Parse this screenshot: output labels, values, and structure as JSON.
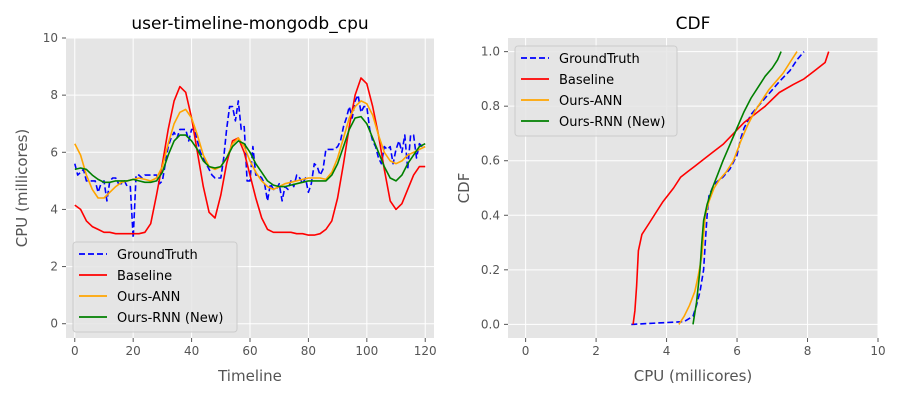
{
  "chart_data": [
    {
      "type": "line",
      "title": "user-timeline-mongodb_cpu",
      "xlabel": "Timeline",
      "ylabel": "CPU (millicores)",
      "xlim": [
        -3,
        123
      ],
      "ylim": [
        -0.5,
        10
      ],
      "xticks": [
        "0",
        "20",
        "40",
        "60",
        "80",
        "100",
        "120"
      ],
      "yticks": [
        "0",
        "2",
        "4",
        "6",
        "8",
        "10"
      ],
      "grid": true,
      "legend_position": "lower-left",
      "series": [
        {
          "name": "GroundTruth",
          "color": "#0000ff",
          "dash": "dashed",
          "x": [
            0,
            1,
            2,
            3,
            4,
            5,
            6,
            7,
            8,
            9,
            10,
            11,
            12,
            13,
            14,
            15,
            16,
            17,
            18,
            19,
            20,
            21,
            22,
            23,
            24,
            25,
            26,
            27,
            28,
            29,
            30,
            31,
            32,
            33,
            34,
            35,
            36,
            37,
            38,
            39,
            40,
            41,
            42,
            43,
            44,
            45,
            46,
            47,
            48,
            49,
            50,
            51,
            52,
            53,
            54,
            55,
            56,
            57,
            58,
            59,
            60,
            61,
            62,
            63,
            64,
            65,
            66,
            67,
            68,
            69,
            70,
            71,
            72,
            73,
            74,
            75,
            76,
            77,
            78,
            79,
            80,
            81,
            82,
            83,
            84,
            85,
            86,
            87,
            88,
            89,
            90,
            91,
            92,
            93,
            94,
            95,
            96,
            97,
            98,
            99,
            100,
            101,
            102,
            103,
            104,
            105,
            106,
            107,
            108,
            109,
            110,
            111,
            112,
            113,
            114,
            115,
            116,
            117,
            118,
            119
          ],
          "y": [
            5.6,
            5.2,
            5.3,
            5.4,
            5.0,
            5.0,
            5.0,
            5.0,
            4.6,
            4.9,
            5.0,
            4.3,
            5.0,
            5.1,
            5.1,
            4.9,
            4.9,
            5.0,
            4.8,
            4.8,
            3.0,
            5.2,
            5.2,
            5.1,
            5.2,
            5.2,
            5.2,
            5.2,
            5.2,
            4.9,
            5.0,
            5.6,
            6.2,
            6.5,
            6.7,
            6.5,
            6.8,
            6.8,
            6.8,
            6.4,
            6.8,
            6.8,
            6.4,
            6.0,
            5.8,
            5.6,
            5.4,
            5.2,
            5.1,
            5.1,
            5.1,
            5.8,
            6.8,
            7.6,
            7.6,
            7.1,
            7.8,
            6.8,
            6.9,
            5.0,
            5.0,
            6.2,
            5.2,
            5.2,
            5.1,
            4.9,
            4.3,
            4.9,
            4.7,
            4.7,
            4.9,
            4.3,
            4.8,
            4.7,
            5.0,
            4.8,
            5.2,
            5.1,
            4.9,
            5.1,
            4.6,
            4.9,
            5.6,
            5.5,
            5.2,
            5.4,
            6.1,
            6.1,
            6.1,
            6.1,
            6.2,
            6.4,
            6.9,
            7.2,
            7.6,
            7.2,
            7.8,
            8.0,
            7.4,
            7.6,
            7.6,
            6.8,
            6.4,
            6.2,
            5.8,
            5.6,
            6.2,
            6.1,
            6.2,
            5.6,
            6.1,
            6.4,
            6.0,
            6.6,
            5.4,
            6.6,
            6.6,
            5.8,
            6.3,
            6.2
          ]
        },
        {
          "name": "Baseline",
          "color": "#ff0000",
          "dash": "solid",
          "x": [
            0,
            2,
            4,
            6,
            8,
            10,
            12,
            14,
            16,
            18,
            20,
            22,
            24,
            26,
            28,
            30,
            32,
            34,
            36,
            38,
            40,
            42,
            44,
            46,
            48,
            50,
            52,
            54,
            56,
            58,
            60,
            62,
            64,
            66,
            68,
            70,
            72,
            74,
            76,
            78,
            80,
            82,
            84,
            86,
            88,
            90,
            92,
            94,
            96,
            98,
            100,
            102,
            104,
            106,
            108,
            110,
            112,
            114,
            116,
            118,
            120
          ],
          "y": [
            4.15,
            4.0,
            3.6,
            3.4,
            3.3,
            3.2,
            3.2,
            3.15,
            3.15,
            3.15,
            3.15,
            3.15,
            3.2,
            3.5,
            4.5,
            5.6,
            6.8,
            7.8,
            8.3,
            8.1,
            7.2,
            6.0,
            4.8,
            3.9,
            3.7,
            4.5,
            5.6,
            6.4,
            6.5,
            6.0,
            5.2,
            4.4,
            3.7,
            3.3,
            3.2,
            3.2,
            3.2,
            3.2,
            3.15,
            3.15,
            3.1,
            3.1,
            3.15,
            3.3,
            3.6,
            4.4,
            5.6,
            6.9,
            8.0,
            8.6,
            8.4,
            7.6,
            6.6,
            5.4,
            4.3,
            4.0,
            4.2,
            4.7,
            5.2,
            5.5,
            5.5
          ]
        },
        {
          "name": "Ours-ANN",
          "color": "#ffa500",
          "dash": "solid",
          "x": [
            0,
            2,
            4,
            6,
            8,
            10,
            12,
            14,
            16,
            18,
            20,
            22,
            24,
            26,
            28,
            30,
            32,
            34,
            36,
            38,
            40,
            42,
            44,
            46,
            48,
            50,
            52,
            54,
            56,
            58,
            60,
            62,
            64,
            66,
            68,
            70,
            72,
            74,
            76,
            78,
            80,
            82,
            84,
            86,
            88,
            90,
            92,
            94,
            96,
            98,
            100,
            102,
            104,
            106,
            108,
            110,
            112,
            114,
            116,
            118,
            120
          ],
          "y": [
            6.3,
            5.9,
            5.2,
            4.7,
            4.4,
            4.4,
            4.6,
            4.8,
            4.95,
            5.0,
            5.05,
            5.1,
            5.05,
            5.0,
            5.1,
            5.5,
            6.3,
            7.0,
            7.4,
            7.5,
            7.2,
            6.6,
            5.9,
            5.5,
            5.4,
            5.5,
            5.8,
            6.3,
            6.5,
            6.2,
            5.7,
            5.3,
            5.0,
            4.8,
            4.7,
            4.8,
            4.9,
            4.95,
            5.0,
            5.05,
            5.1,
            5.1,
            5.1,
            5.05,
            5.3,
            5.8,
            6.5,
            7.2,
            7.6,
            7.8,
            7.7,
            7.3,
            6.6,
            6.0,
            5.7,
            5.6,
            5.7,
            5.9,
            6.0,
            6.1,
            6.2
          ]
        },
        {
          "name": "Ours-RNN (New)",
          "color": "#008000",
          "dash": "solid",
          "x": [
            0,
            2,
            4,
            6,
            8,
            10,
            12,
            14,
            16,
            18,
            20,
            22,
            24,
            26,
            28,
            30,
            32,
            34,
            36,
            38,
            40,
            42,
            44,
            46,
            48,
            50,
            52,
            54,
            56,
            58,
            60,
            62,
            64,
            66,
            68,
            70,
            72,
            74,
            76,
            78,
            80,
            82,
            84,
            86,
            88,
            90,
            92,
            94,
            96,
            98,
            100,
            102,
            104,
            106,
            108,
            110,
            112,
            114,
            116,
            118,
            120
          ],
          "y": [
            5.4,
            5.45,
            5.4,
            5.2,
            5.05,
            4.95,
            4.95,
            5.0,
            5.0,
            5.0,
            5.05,
            5.0,
            4.95,
            4.95,
            5.0,
            5.3,
            5.9,
            6.4,
            6.6,
            6.6,
            6.4,
            6.1,
            5.7,
            5.5,
            5.45,
            5.5,
            5.8,
            6.2,
            6.4,
            6.3,
            6.0,
            5.6,
            5.3,
            5.0,
            4.85,
            4.8,
            4.8,
            4.85,
            4.9,
            4.95,
            5.0,
            5.0,
            5.0,
            5.0,
            5.2,
            5.6,
            6.2,
            6.8,
            7.2,
            7.25,
            7.0,
            6.5,
            6.0,
            5.5,
            5.1,
            5.0,
            5.2,
            5.6,
            5.9,
            6.2,
            6.3
          ]
        }
      ],
      "legend": [
        "GroundTruth",
        "Baseline",
        "Ours-ANN",
        "Ours-RNN (New)"
      ]
    },
    {
      "type": "line",
      "title": "CDF",
      "xlabel": "CPU (millicores)",
      "ylabel": "CDF",
      "xlim": [
        -0.5,
        10
      ],
      "ylim": [
        -0.05,
        1.05
      ],
      "xticks": [
        "0",
        "2",
        "4",
        "6",
        "8",
        "10"
      ],
      "yticks": [
        "0.0",
        "0.2",
        "0.4",
        "0.6",
        "0.8",
        "1.0"
      ],
      "grid": true,
      "legend_position": "top-left",
      "series": [
        {
          "name": "GroundTruth",
          "color": "#0000ff",
          "dash": "dashed",
          "x": [
            3.0,
            4.5,
            4.75,
            4.85,
            4.95,
            5.05,
            5.1,
            5.15,
            5.2,
            5.3,
            5.4,
            5.6,
            5.8,
            6.0,
            6.1,
            6.2,
            6.4,
            6.6,
            6.8,
            7.0,
            7.2,
            7.5,
            7.7,
            7.9
          ],
          "y": [
            0.0,
            0.01,
            0.03,
            0.07,
            0.12,
            0.2,
            0.3,
            0.4,
            0.47,
            0.5,
            0.52,
            0.54,
            0.57,
            0.62,
            0.68,
            0.72,
            0.77,
            0.8,
            0.83,
            0.86,
            0.89,
            0.93,
            0.97,
            1.0
          ]
        },
        {
          "name": "Baseline",
          "color": "#ff0000",
          "dash": "solid",
          "x": [
            3.05,
            3.1,
            3.15,
            3.2,
            3.3,
            3.5,
            3.7,
            3.9,
            4.2,
            4.4,
            4.6,
            4.8,
            5.0,
            5.3,
            5.6,
            5.9,
            6.2,
            6.5,
            6.8,
            7.2,
            7.6,
            7.9,
            8.2,
            8.5,
            8.6
          ],
          "y": [
            0.0,
            0.05,
            0.14,
            0.27,
            0.33,
            0.37,
            0.41,
            0.45,
            0.5,
            0.54,
            0.56,
            0.58,
            0.6,
            0.63,
            0.66,
            0.7,
            0.74,
            0.77,
            0.8,
            0.85,
            0.88,
            0.9,
            0.93,
            0.96,
            1.0
          ]
        },
        {
          "name": "Ours-ANN",
          "color": "#ffa500",
          "dash": "solid",
          "x": [
            4.35,
            4.5,
            4.65,
            4.8,
            4.9,
            5.0,
            5.05,
            5.1,
            5.2,
            5.35,
            5.5,
            5.7,
            5.9,
            6.1,
            6.3,
            6.5,
            6.7,
            6.9,
            7.1,
            7.3,
            7.5,
            7.7
          ],
          "y": [
            0.0,
            0.03,
            0.07,
            0.12,
            0.18,
            0.25,
            0.33,
            0.4,
            0.45,
            0.5,
            0.53,
            0.56,
            0.6,
            0.67,
            0.73,
            0.78,
            0.82,
            0.86,
            0.89,
            0.92,
            0.96,
            1.0
          ]
        },
        {
          "name": "Ours-RNN (New)",
          "color": "#008000",
          "dash": "solid",
          "x": [
            4.75,
            4.85,
            4.95,
            5.0,
            5.05,
            5.15,
            5.3,
            5.45,
            5.6,
            5.8,
            6.0,
            6.2,
            6.4,
            6.6,
            6.8,
            7.0,
            7.15,
            7.25
          ],
          "y": [
            0.0,
            0.08,
            0.2,
            0.3,
            0.38,
            0.44,
            0.5,
            0.55,
            0.6,
            0.66,
            0.72,
            0.78,
            0.83,
            0.87,
            0.91,
            0.94,
            0.97,
            1.0
          ]
        }
      ],
      "legend": [
        "GroundTruth",
        "Baseline",
        "Ours-ANN",
        "Ours-RNN (New)"
      ]
    }
  ]
}
